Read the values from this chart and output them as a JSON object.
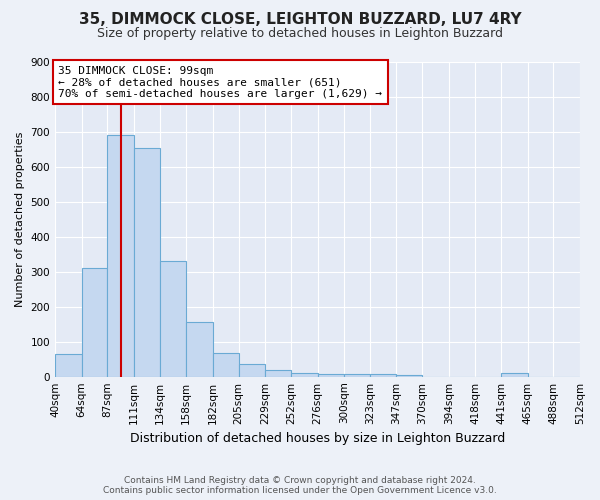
{
  "title": "35, DIMMOCK CLOSE, LEIGHTON BUZZARD, LU7 4RY",
  "subtitle": "Size of property relative to detached houses in Leighton Buzzard",
  "xlabel": "Distribution of detached houses by size in Leighton Buzzard",
  "ylabel": "Number of detached properties",
  "bar_color": "#c5d8f0",
  "bar_edge_color": "#6aaad4",
  "annotation_line_color": "#cc0000",
  "annotation_text": "35 DIMMOCK CLOSE: 99sqm\n← 28% of detached houses are smaller (651)\n70% of semi-detached houses are larger (1,629) →",
  "property_value": 99,
  "footnote_line1": "Contains HM Land Registry data © Crown copyright and database right 2024.",
  "footnote_line2": "Contains public sector information licensed under the Open Government Licence v3.0.",
  "bins": [
    40,
    64,
    87,
    111,
    134,
    158,
    182,
    205,
    229,
    252,
    276,
    300,
    323,
    347,
    370,
    394,
    418,
    441,
    465,
    488,
    512
  ],
  "counts": [
    65,
    310,
    690,
    653,
    330,
    155,
    68,
    35,
    20,
    10,
    8,
    8,
    8,
    5,
    0,
    0,
    0,
    10,
    0,
    0
  ],
  "ylim": [
    0,
    900
  ],
  "yticks": [
    0,
    100,
    200,
    300,
    400,
    500,
    600,
    700,
    800,
    900
  ],
  "bg_color": "#edf1f8",
  "plot_bg": "#e4eaf5",
  "title_fontsize": 11,
  "subtitle_fontsize": 9,
  "ylabel_fontsize": 8,
  "xlabel_fontsize": 9,
  "tick_fontsize": 7.5,
  "annot_fontsize": 8,
  "footnote_fontsize": 6.5
}
